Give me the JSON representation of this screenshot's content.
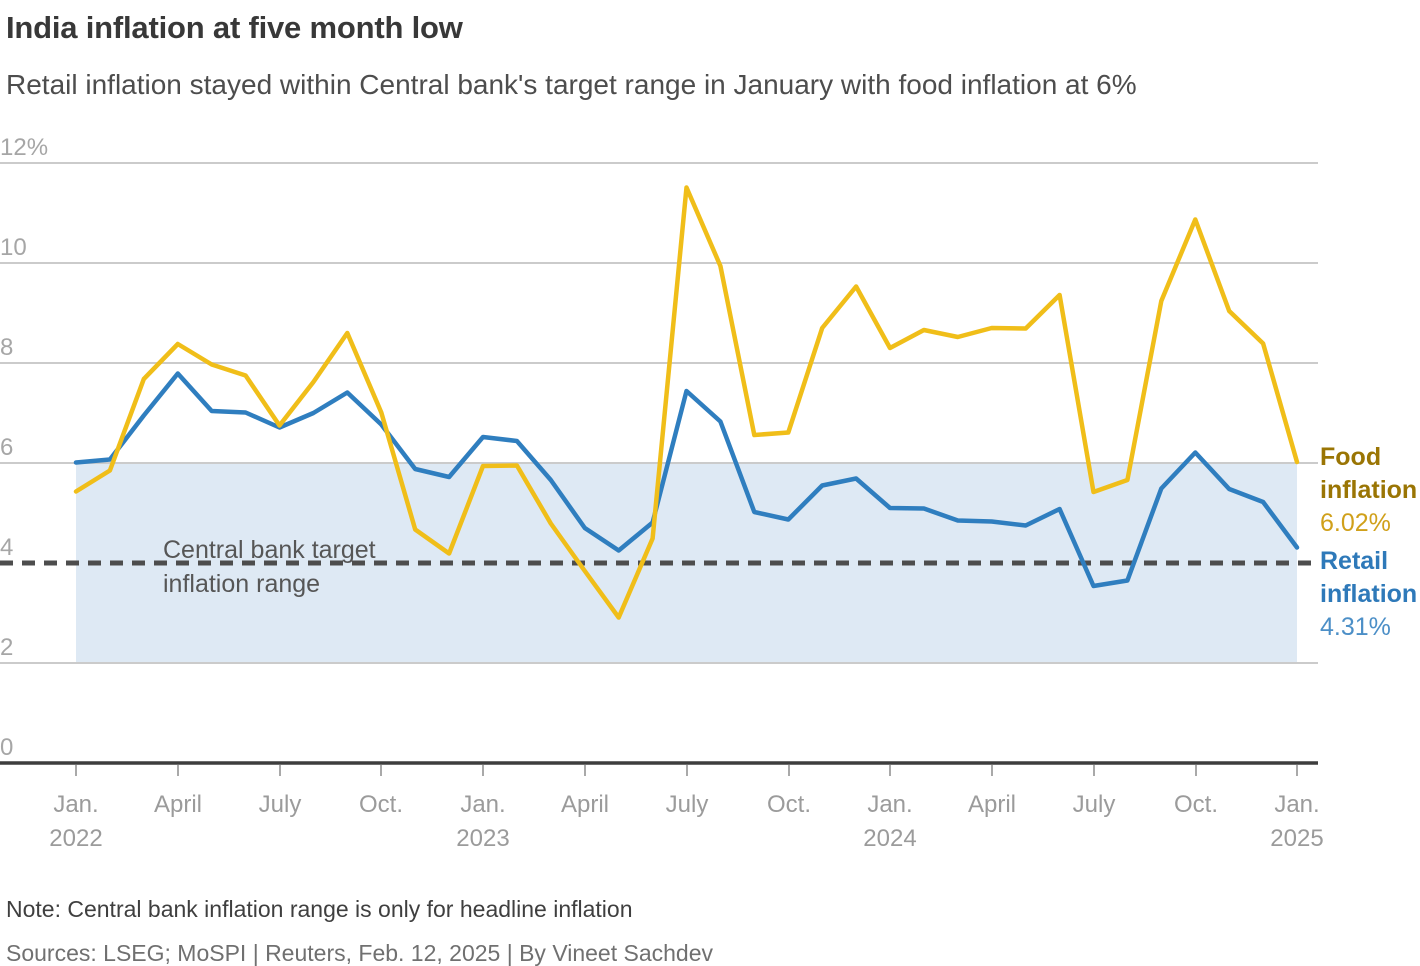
{
  "chart_data": {
    "type": "line",
    "title": "India inflation at five month low",
    "subtitle": "Retail inflation stayed within Central bank's target range in January with food inflation at 6%",
    "x": [
      "Jan 2022",
      "Feb 2022",
      "Mar 2022",
      "Apr 2022",
      "May 2022",
      "Jun 2022",
      "Jul 2022",
      "Aug 2022",
      "Sep 2022",
      "Oct 2022",
      "Nov 2022",
      "Dec 2022",
      "Jan 2023",
      "Feb 2023",
      "Mar 2023",
      "Apr 2023",
      "May 2023",
      "Jun 2023",
      "Jul 2023",
      "Aug 2023",
      "Sep 2023",
      "Oct 2023",
      "Nov 2023",
      "Dec 2023",
      "Jan 2024",
      "Feb 2024",
      "Mar 2024",
      "Apr 2024",
      "May 2024",
      "Jun 2024",
      "Jul 2024",
      "Aug 2024",
      "Sep 2024",
      "Oct 2024",
      "Nov 2024",
      "Dec 2024",
      "Jan 2025"
    ],
    "series": [
      {
        "name": "Retail inflation",
        "color": "#2f7ebf",
        "label_line1": "Retail",
        "label_line2": "inflation",
        "end_value_label": "4.31%",
        "values": [
          6.01,
          6.07,
          6.95,
          7.79,
          7.04,
          7.01,
          6.71,
          7.0,
          7.41,
          6.77,
          5.88,
          5.72,
          6.52,
          6.44,
          5.66,
          4.7,
          4.25,
          4.81,
          7.44,
          6.83,
          5.02,
          4.87,
          5.55,
          5.69,
          5.1,
          5.09,
          4.85,
          4.83,
          4.75,
          5.08,
          3.54,
          3.65,
          5.49,
          6.21,
          5.48,
          5.22,
          4.31
        ]
      },
      {
        "name": "Food inflation",
        "color": "#f0be19",
        "label_line1": "Food",
        "label_line2": "inflation",
        "end_value_label": "6.02%",
        "values": [
          5.43,
          5.85,
          7.68,
          8.38,
          7.97,
          7.75,
          6.75,
          7.62,
          8.6,
          7.01,
          4.67,
          4.19,
          5.94,
          5.95,
          4.79,
          3.84,
          2.91,
          4.49,
          11.51,
          9.94,
          6.56,
          6.61,
          8.7,
          9.53,
          8.3,
          8.66,
          8.52,
          8.7,
          8.69,
          9.36,
          5.42,
          5.66,
          9.24,
          10.87,
          9.04,
          8.39,
          6.02
        ]
      }
    ],
    "ylim": [
      0,
      12
    ],
    "y_ticks": [
      "12%",
      "10",
      "8",
      "6",
      "4",
      "2",
      "0"
    ],
    "x_tick_labels": [
      {
        "month": "Jan.",
        "year": "2022"
      },
      {
        "month": "April"
      },
      {
        "month": "July"
      },
      {
        "month": "Oct."
      },
      {
        "month": "Jan.",
        "year": "2023"
      },
      {
        "month": "April"
      },
      {
        "month": "July"
      },
      {
        "month": "Oct."
      },
      {
        "month": "Jan.",
        "year": "2024"
      },
      {
        "month": "April"
      },
      {
        "month": "July"
      },
      {
        "month": "Oct."
      },
      {
        "month": "Jan.",
        "year": "2025"
      }
    ],
    "target_band": {
      "min": 2,
      "max": 6,
      "color": "#dee9f4"
    },
    "target_line": 4,
    "annotation": {
      "line1": "Central bank target",
      "line2": "inflation range"
    },
    "grid": "horizontal",
    "legend_position": "right",
    "note": "Note: Central bank inflation range is only for headline inflation",
    "sources": "Sources: LSEG; MoSPI | Reuters, Feb. 12, 2025 | By Vineet Sachdev"
  }
}
